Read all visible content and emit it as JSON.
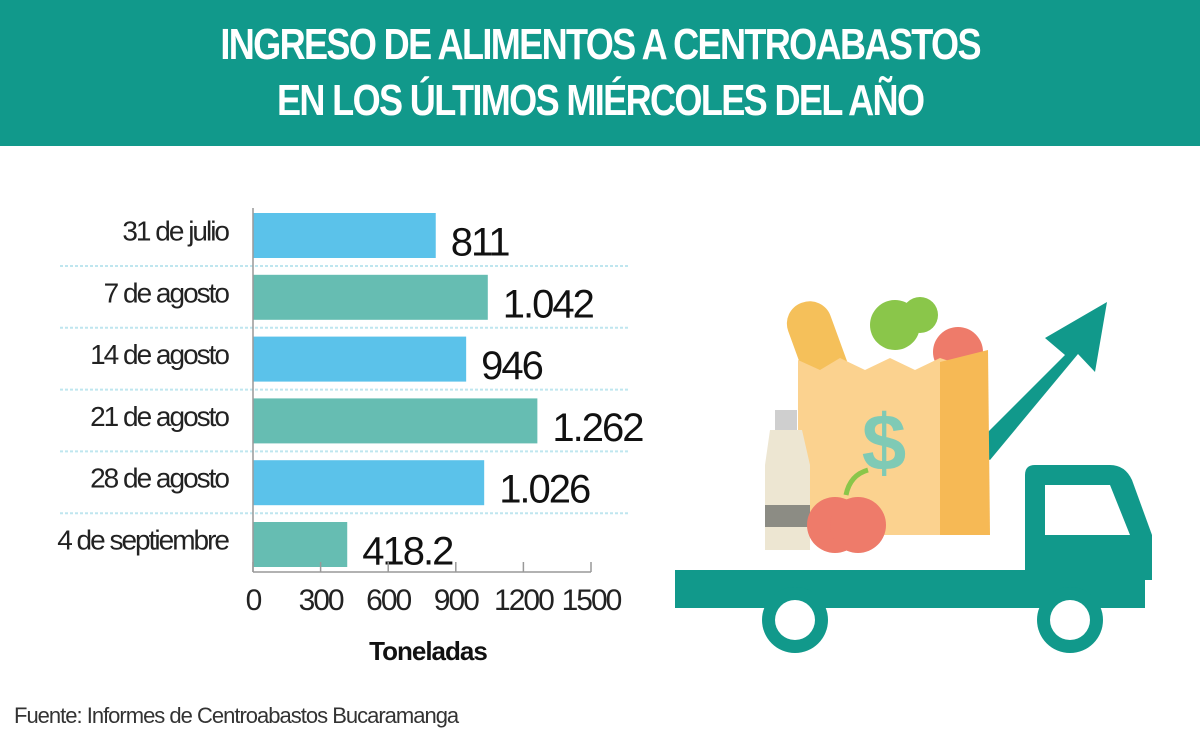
{
  "header": {
    "title_line1": "INGRESO DE ALIMENTOS A CENTROABASTOS",
    "title_line2": "EN LOS ÚLTIMOS MIÉRCOLES DEL AÑO",
    "background": "#11998b"
  },
  "chart_data": {
    "type": "bar",
    "orientation": "horizontal",
    "categories": [
      "31 de julio",
      "7 de agosto",
      "14 de agosto",
      "21 de agosto",
      "28 de agosto",
      "4 de septiembre"
    ],
    "values": [
      811,
      1042,
      946,
      1262,
      1026,
      418.2
    ],
    "data_labels": [
      "811",
      "1.042",
      "946",
      "1.262",
      "1.026",
      "418.2"
    ],
    "colors": [
      "#5bc2ea",
      "#66bdb2",
      "#5bc2ea",
      "#66bdb2",
      "#5bc2ea",
      "#66bdb2"
    ],
    "xlabel": "Toneladas",
    "xlim": [
      0,
      1500
    ],
    "xticks": [
      "0",
      "300",
      "600",
      "900",
      "1200",
      "1500"
    ],
    "grid": "dotted row separators"
  },
  "illustration": {
    "icons": [
      "delivery-truck",
      "grocery-bag",
      "dollar-sign",
      "up-trend-arrow"
    ],
    "dollar_symbol": "$"
  },
  "source": "Fuente: Informes de Centroabastos Bucaramanga"
}
